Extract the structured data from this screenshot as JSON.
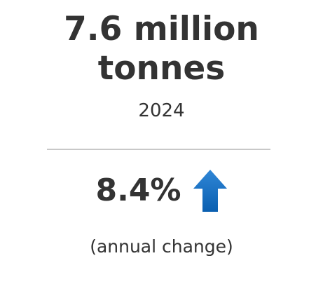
{
  "stat": {
    "headline_line1": "7.6 million",
    "headline_line2": "tonnes",
    "year": "2024",
    "change_value": "8.4%",
    "change_direction_icon": "arrow-up-icon",
    "caption": "(annual change)"
  },
  "colors": {
    "text": "#333333",
    "divider": "#c8c8c8",
    "arrow_top": "#2f86d6",
    "arrow_bottom": "#0a5fb0"
  }
}
